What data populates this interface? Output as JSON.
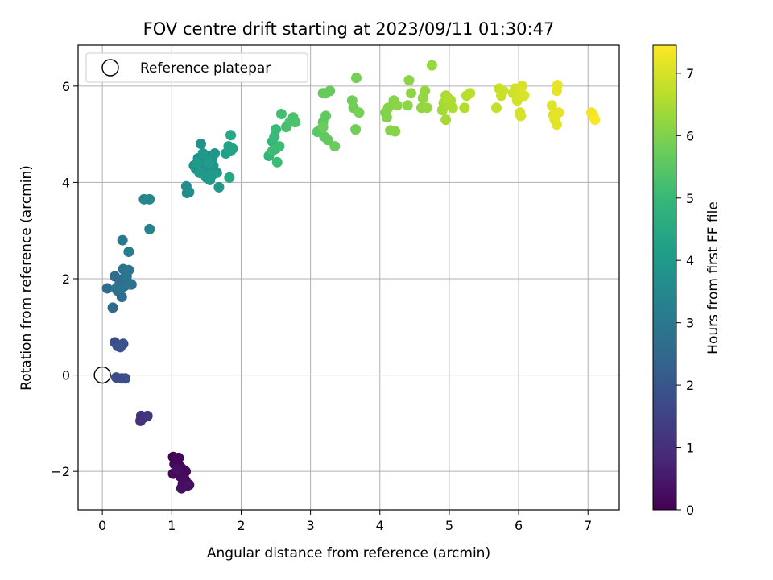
{
  "chart_data": {
    "type": "scatter",
    "title": "FOV centre drift starting at 2023/09/11 01:30:47",
    "xlabel": "Angular distance from reference (arcmin)",
    "ylabel": "Rotation from reference (arcmin)",
    "xlim": [
      -0.35,
      7.45
    ],
    "ylim": [
      -2.8,
      6.85
    ],
    "xticks": [
      "0",
      "1",
      "2",
      "3",
      "4",
      "5",
      "6",
      "7"
    ],
    "yticks": [
      "−2",
      "0",
      "2",
      "4",
      "6"
    ],
    "grid": true,
    "legend": {
      "placement": "upper-left",
      "entries": [
        {
          "label": "Reference platepar",
          "marker": "open-circle"
        }
      ],
      "reference_point": {
        "x": 0,
        "y": 0
      }
    },
    "colorbar": {
      "label": "Hours from first FF file",
      "range": [
        0,
        7.45
      ],
      "ticks": [
        "0",
        "1",
        "2",
        "3",
        "4",
        "5",
        "6",
        "7"
      ],
      "colormap": "viridis"
    },
    "colors": {
      "grid": "#b0b0b0",
      "axes": "#000000",
      "viridis": [
        "#440154",
        "#482878",
        "#3e4989",
        "#31688e",
        "#26828e",
        "#1f9e89",
        "#35b779",
        "#6ece58",
        "#b5de2b",
        "#fde725"
      ]
    },
    "points": [
      [
        1.02,
        -1.7,
        0.0
      ],
      [
        1.05,
        -1.75,
        0.02
      ],
      [
        1.08,
        -1.8,
        0.04
      ],
      [
        1.1,
        -1.72,
        0.06
      ],
      [
        1.12,
        -1.9,
        0.08
      ],
      [
        1.04,
        -1.85,
        0.1
      ],
      [
        1.15,
        -1.95,
        0.12
      ],
      [
        1.2,
        -2.0,
        0.14
      ],
      [
        1.1,
        -2.05,
        0.16
      ],
      [
        1.02,
        -2.05,
        0.18
      ],
      [
        1.18,
        -2.15,
        0.2
      ],
      [
        1.12,
        -2.1,
        0.22
      ],
      [
        1.16,
        -2.25,
        0.24
      ],
      [
        1.2,
        -2.2,
        0.26
      ],
      [
        1.25,
        -2.28,
        0.28
      ],
      [
        1.14,
        -2.35,
        0.3
      ],
      [
        1.08,
        -1.95,
        0.32
      ],
      [
        1.22,
        -2.3,
        0.34
      ],
      [
        0.56,
        -0.85,
        1.0
      ],
      [
        0.6,
        -0.88,
        1.05
      ],
      [
        0.55,
        -0.95,
        1.1
      ],
      [
        0.65,
        -0.85,
        1.15
      ],
      [
        0.18,
        0.68,
        1.8
      ],
      [
        0.22,
        0.6,
        1.85
      ],
      [
        0.3,
        0.65,
        1.9
      ],
      [
        0.26,
        0.58,
        1.95
      ],
      [
        0.2,
        -0.05,
        1.7
      ],
      [
        0.28,
        -0.07,
        1.72
      ],
      [
        0.33,
        -0.07,
        1.75
      ],
      [
        0.07,
        1.8,
        2.55
      ],
      [
        0.15,
        1.4,
        2.5
      ],
      [
        0.18,
        2.05,
        2.6
      ],
      [
        0.22,
        1.75,
        2.62
      ],
      [
        0.25,
        1.9,
        2.65
      ],
      [
        0.28,
        1.62,
        2.68
      ],
      [
        0.3,
        2.0,
        2.7
      ],
      [
        0.32,
        1.85,
        2.72
      ],
      [
        0.35,
        1.95,
        2.75
      ],
      [
        0.4,
        1.88,
        2.78
      ],
      [
        0.42,
        1.88,
        2.8
      ],
      [
        0.27,
        1.8,
        2.82
      ],
      [
        0.2,
        1.8,
        2.85
      ],
      [
        0.3,
        2.2,
        2.88
      ],
      [
        0.38,
        2.18,
        2.9
      ],
      [
        0.35,
        2.05,
        2.92
      ],
      [
        0.29,
        2.8,
        3.05
      ],
      [
        0.38,
        2.56,
        3.1
      ],
      [
        0.6,
        3.65,
        3.45
      ],
      [
        0.68,
        3.65,
        3.5
      ],
      [
        0.68,
        3.03,
        3.35
      ],
      [
        1.21,
        3.92,
        3.6
      ],
      [
        1.22,
        3.78,
        3.62
      ],
      [
        1.25,
        3.8,
        3.64
      ],
      [
        1.32,
        4.35,
        3.66
      ],
      [
        1.35,
        4.28,
        3.68
      ],
      [
        1.38,
        4.5,
        3.7
      ],
      [
        1.4,
        4.4,
        3.72
      ],
      [
        1.42,
        4.8,
        3.74
      ],
      [
        1.45,
        4.3,
        3.76
      ],
      [
        1.48,
        4.15,
        3.78
      ],
      [
        1.5,
        4.45,
        3.8
      ],
      [
        1.52,
        4.55,
        3.82
      ],
      [
        1.55,
        4.25,
        3.84
      ],
      [
        1.58,
        4.5,
        3.86
      ],
      [
        1.6,
        4.35,
        3.88
      ],
      [
        1.62,
        4.6,
        3.9
      ],
      [
        1.55,
        4.05,
        3.92
      ],
      [
        1.65,
        4.2,
        3.94
      ],
      [
        1.68,
        3.9,
        3.96
      ],
      [
        1.5,
        4.1,
        3.98
      ],
      [
        1.45,
        4.6,
        4.0
      ],
      [
        1.4,
        4.2,
        4.02
      ],
      [
        1.36,
        4.4,
        4.04
      ],
      [
        1.53,
        4.4,
        4.06
      ],
      [
        1.58,
        4.15,
        4.08
      ],
      [
        1.78,
        4.6,
        4.2
      ],
      [
        1.82,
        4.75,
        4.25
      ],
      [
        1.85,
        4.65,
        4.3
      ],
      [
        1.88,
        4.7,
        4.35
      ],
      [
        1.83,
        4.1,
        4.4
      ],
      [
        1.85,
        4.98,
        4.45
      ],
      [
        2.4,
        4.55,
        4.9
      ],
      [
        2.45,
        4.85,
        4.95
      ],
      [
        2.5,
        4.7,
        5.0
      ],
      [
        2.48,
        4.95,
        5.02
      ],
      [
        2.5,
        5.1,
        5.05
      ],
      [
        2.52,
        4.42,
        5.08
      ],
      [
        2.55,
        4.75,
        5.1
      ],
      [
        2.45,
        4.65,
        5.12
      ],
      [
        2.58,
        5.42,
        5.2
      ],
      [
        2.65,
        5.15,
        5.25
      ],
      [
        2.7,
        5.25,
        5.28
      ],
      [
        2.75,
        5.35,
        5.3
      ],
      [
        2.78,
        5.25,
        5.32
      ],
      [
        3.1,
        5.05,
        5.5
      ],
      [
        3.15,
        5.1,
        5.52
      ],
      [
        3.18,
        5.25,
        5.55
      ],
      [
        3.2,
        4.95,
        5.58
      ],
      [
        3.22,
        5.38,
        5.6
      ],
      [
        3.25,
        4.88,
        5.62
      ],
      [
        3.18,
        5.85,
        5.65
      ],
      [
        3.22,
        5.85,
        5.68
      ],
      [
        3.28,
        5.9,
        5.7
      ],
      [
        3.35,
        4.75,
        5.72
      ],
      [
        3.18,
        5.15,
        5.74
      ],
      [
        3.6,
        5.7,
        5.8
      ],
      [
        3.62,
        5.55,
        5.82
      ],
      [
        3.65,
        5.1,
        5.84
      ],
      [
        3.66,
        6.17,
        5.86
      ],
      [
        3.7,
        5.45,
        5.88
      ],
      [
        4.08,
        5.45,
        6.0
      ],
      [
        4.1,
        5.35,
        6.02
      ],
      [
        4.12,
        5.55,
        6.04
      ],
      [
        4.15,
        5.08,
        6.06
      ],
      [
        4.2,
        5.7,
        6.08
      ],
      [
        4.22,
        5.06,
        6.1
      ],
      [
        4.25,
        5.6,
        6.12
      ],
      [
        4.4,
        5.6,
        6.14
      ],
      [
        4.42,
        6.12,
        6.16
      ],
      [
        4.45,
        5.85,
        6.18
      ],
      [
        4.6,
        5.55,
        6.2
      ],
      [
        4.62,
        5.75,
        6.22
      ],
      [
        4.65,
        5.9,
        6.24
      ],
      [
        4.68,
        5.55,
        6.26
      ],
      [
        4.75,
        6.43,
        6.28
      ],
      [
        4.9,
        5.5,
        6.4
      ],
      [
        4.92,
        5.65,
        6.42
      ],
      [
        4.95,
        5.3,
        6.44
      ],
      [
        4.95,
        5.8,
        6.46
      ],
      [
        5.0,
        5.6,
        6.48
      ],
      [
        5.02,
        5.7,
        6.5
      ],
      [
        5.05,
        5.55,
        6.52
      ],
      [
        4.98,
        5.75,
        6.54
      ],
      [
        5.22,
        5.55,
        6.6
      ],
      [
        5.25,
        5.8,
        6.65
      ],
      [
        5.3,
        5.85,
        6.68
      ],
      [
        5.68,
        5.55,
        6.8
      ],
      [
        5.72,
        5.95,
        6.82
      ],
      [
        5.75,
        5.8,
        6.85
      ],
      [
        5.78,
        5.9,
        6.88
      ],
      [
        5.92,
        5.85,
        6.9
      ],
      [
        5.95,
        5.95,
        6.92
      ],
      [
        5.98,
        5.7,
        6.94
      ],
      [
        6.0,
        5.8,
        6.96
      ],
      [
        6.02,
        5.45,
        6.98
      ],
      [
        6.03,
        5.38,
        7.0
      ],
      [
        6.05,
        6.0,
        7.02
      ],
      [
        6.08,
        5.8,
        7.04
      ],
      [
        6.48,
        5.6,
        7.1
      ],
      [
        6.5,
        5.4,
        7.12
      ],
      [
        6.52,
        5.3,
        7.14
      ],
      [
        6.55,
        5.2,
        7.16
      ],
      [
        6.55,
        5.9,
        7.18
      ],
      [
        6.58,
        5.45,
        7.2
      ],
      [
        6.56,
        6.02,
        7.22
      ],
      [
        7.05,
        5.45,
        7.3
      ],
      [
        7.08,
        5.38,
        7.35
      ],
      [
        7.1,
        5.3,
        7.4
      ]
    ]
  }
}
